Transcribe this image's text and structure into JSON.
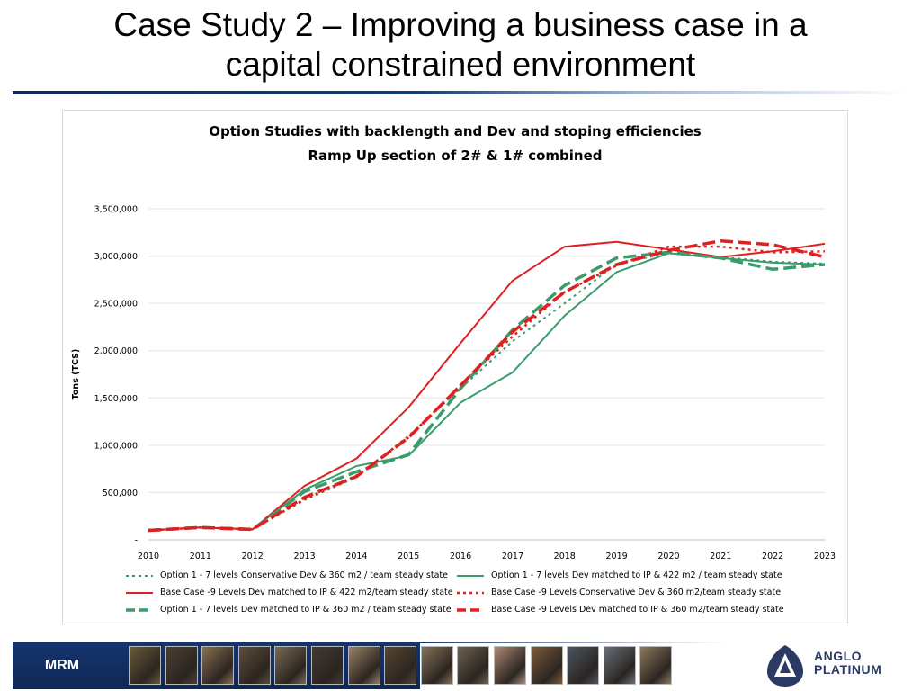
{
  "slide": {
    "title_line1": "Case Study 2 – Improving a business case in a",
    "title_line2": "capital constrained environment"
  },
  "footer": {
    "label": "MRM",
    "logo_line1": "ANGLO",
    "logo_line2": "PLATINUM",
    "colors": {
      "bar": "#15356e",
      "logo": "#2a3a62"
    }
  },
  "chart_data": {
    "type": "line",
    "title": "Option Studies with backlength and Dev and stoping efficiencies",
    "subtitle": "Ramp Up section of 2# & 1# combined",
    "ylabel": "Tons (TCS)",
    "xlabel": "",
    "ylim": [
      0,
      3500000
    ],
    "yticks": [
      0,
      500000,
      1000000,
      1500000,
      2000000,
      2500000,
      3000000,
      3500000
    ],
    "ytick_labels": [
      "-",
      "500,000",
      "1,000,000",
      "1,500,000",
      "2,000,000",
      "2,500,000",
      "3,000,000",
      "3,500,000"
    ],
    "categories": [
      "2010",
      "2011",
      "2012",
      "2013",
      "2014",
      "2015",
      "2016",
      "2017",
      "2018",
      "2019",
      "2020",
      "2021",
      "2022",
      "2023"
    ],
    "grid": "horizontal",
    "legend_position": "bottom",
    "series": [
      {
        "name": "Option 1 - 7 levels Conservative Dev & 360 m2 / team steady state",
        "color": "#3a9c6a",
        "dash": "dotted",
        "width": 2,
        "values": [
          100000,
          130000,
          110000,
          420000,
          660000,
          1100000,
          1600000,
          2100000,
          2500000,
          2920000,
          3030000,
          2990000,
          2940000,
          2920000
        ]
      },
      {
        "name": "Option 1 - 7 levels Dev matched to IP & 422 m2 / team steady state",
        "color": "#3a9c6a",
        "dash": "solid",
        "width": 2,
        "values": [
          100000,
          130000,
          110000,
          530000,
          780000,
          890000,
          1450000,
          1770000,
          2370000,
          2830000,
          3030000,
          2980000,
          2930000,
          2910000
        ]
      },
      {
        "name": "Base Case -9 Levels Dev matched to IP & 422 m2/team steady state",
        "color": "#e02020",
        "dash": "solid",
        "width": 2,
        "values": [
          100000,
          130000,
          110000,
          570000,
          860000,
          1400000,
          2080000,
          2740000,
          3100000,
          3150000,
          3070000,
          2990000,
          3050000,
          3130000
        ]
      },
      {
        "name": "Base Case -9 Levels Conservative Dev & 360 m2/team steady state",
        "color": "#e02020",
        "dash": "dotted",
        "width": 2.5,
        "values": [
          100000,
          130000,
          110000,
          430000,
          680000,
          1080000,
          1640000,
          2150000,
          2620000,
          2900000,
          3100000,
          3100000,
          3040000,
          3050000
        ]
      },
      {
        "name": "Option 1 - 7 levels Dev matched to IP & 360 m2 / team steady state",
        "color": "#3a9c6a",
        "dash": "longdash",
        "width": 3.5,
        "values": [
          100000,
          130000,
          110000,
          510000,
          720000,
          900000,
          1600000,
          2220000,
          2690000,
          2980000,
          3040000,
          2980000,
          2860000,
          2910000
        ]
      },
      {
        "name": "Base Case -9 Levels Dev matched to IP & 360 m2/team steady state",
        "color": "#e02020",
        "dash": "longdash",
        "width": 3.5,
        "values": [
          100000,
          130000,
          110000,
          450000,
          670000,
          1080000,
          1630000,
          2200000,
          2620000,
          2910000,
          3060000,
          3160000,
          3120000,
          2990000
        ]
      }
    ]
  }
}
